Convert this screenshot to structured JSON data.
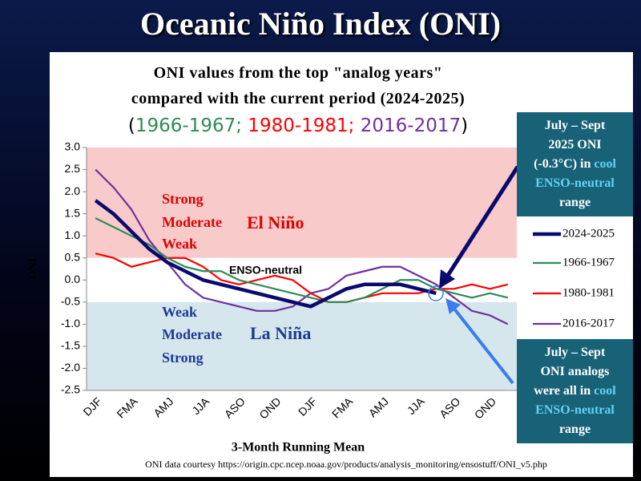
{
  "slide_title": "Oceanic Niño Index (ONI)",
  "chart_data": {
    "type": "line",
    "title": [
      "ONI values from the top \"analog years\"",
      "compared with the current period (2024-2025)"
    ],
    "subtitle": [
      {
        "text": "(",
        "color": "#000000"
      },
      {
        "text": "1966-1967;",
        "color": "#2e8b57"
      },
      {
        "text": " 1980-1981;",
        "color": "#ff0000"
      },
      {
        "text": " 2016-2017",
        "color": "#7030a0"
      },
      {
        "text": ")",
        "color": "#000000"
      }
    ],
    "ylabel": "ONI",
    "xlabel": "3-Month Running Mean",
    "categories": [
      "DJF",
      null,
      "FMA",
      null,
      "AMJ",
      null,
      "JJA",
      null,
      "ASO",
      null,
      "OND",
      null,
      "DJF",
      null,
      "FMA",
      null,
      "AMJ",
      null,
      "JJA",
      null,
      "ASO",
      null,
      "OND",
      null
    ],
    "series": [
      {
        "name": "2024-2025",
        "color": "#0a0a6e",
        "values": [
          1.8,
          1.5,
          1.1,
          0.7,
          0.4,
          0.2,
          0.0,
          -0.1,
          -0.2,
          -0.3,
          -0.4,
          -0.5,
          -0.6,
          -0.4,
          -0.2,
          -0.1,
          -0.1,
          -0.1,
          -0.2,
          -0.3,
          null,
          null,
          null,
          null
        ]
      },
      {
        "name": "1966-1967",
        "color": "#2e8b57",
        "values": [
          1.4,
          1.2,
          1.0,
          0.8,
          0.5,
          0.3,
          0.2,
          0.2,
          0.0,
          -0.1,
          -0.2,
          -0.3,
          -0.4,
          -0.5,
          -0.5,
          -0.4,
          -0.2,
          0.0,
          0.0,
          -0.2,
          -0.3,
          -0.4,
          -0.3,
          -0.4
        ]
      },
      {
        "name": "1980-1981",
        "color": "#ff0000",
        "values": [
          0.6,
          0.5,
          0.3,
          0.4,
          0.5,
          0.5,
          0.3,
          0.0,
          -0.1,
          0.0,
          0.1,
          0.0,
          -0.3,
          -0.5,
          -0.5,
          -0.4,
          -0.3,
          -0.3,
          -0.3,
          -0.2,
          -0.2,
          -0.1,
          -0.2,
          -0.1
        ]
      },
      {
        "name": "2016-2017",
        "color": "#7030a0",
        "values": [
          2.5,
          2.1,
          1.6,
          0.9,
          0.4,
          -0.1,
          -0.4,
          -0.5,
          -0.6,
          -0.7,
          -0.7,
          -0.6,
          -0.3,
          -0.2,
          0.1,
          0.2,
          0.3,
          0.3,
          0.1,
          -0.1,
          -0.4,
          -0.7,
          -0.8,
          -1.0
        ]
      }
    ],
    "ylim": [
      -2.5,
      3.0
    ],
    "yticks": [
      {
        "value": 3,
        "label": "3.0"
      },
      {
        "value": 2.5,
        "label": "2.5"
      },
      {
        "value": 2,
        "label": "2.0"
      },
      {
        "value": 1.5,
        "label": "1.5"
      },
      {
        "value": 1,
        "label": "1.0"
      },
      {
        "value": 0.5,
        "label": "0.5"
      },
      {
        "value": 0,
        "label": "0.0"
      },
      {
        "value": -0.5,
        "label": "-0.5"
      },
      {
        "value": -1,
        "label": "-1.0"
      },
      {
        "value": -1.5,
        "label": "-1.5"
      },
      {
        "value": -2,
        "label": "-2.0"
      },
      {
        "value": -2.5,
        "label": "-2.5"
      }
    ],
    "bands": [
      {
        "from": 0.5,
        "to": 3,
        "color": "#f9caca"
      },
      {
        "from": -0.5,
        "to": 0.5,
        "color": "#ffffff"
      },
      {
        "from": -2.5,
        "to": -0.5,
        "color": "#d5e7ed"
      }
    ],
    "el_nino": {
      "label": "El Niño",
      "levels": [
        "Strong",
        "Moderate",
        "Weak"
      ]
    },
    "la_nina": {
      "label": "La Niña",
      "levels": [
        "Weak",
        "Moderate",
        "Strong"
      ]
    },
    "neutral_label": "ENSO-neutral"
  },
  "callouts": [
    {
      "lines": [
        [
          {
            "text": "July – Sept",
            "color": "#ffffff"
          }
        ],
        [
          {
            "text": "2025 ONI",
            "color": "#ffffff"
          }
        ],
        [
          {
            "text": "(-0.3°C) in ",
            "color": "#ffffff"
          },
          {
            "text": "cool",
            "color": "#5fd3f5"
          }
        ],
        [
          {
            "text": "ENSO-neutral",
            "color": "#5fd3f5"
          }
        ],
        [
          {
            "text": "range",
            "color": "#ffffff"
          }
        ]
      ]
    },
    {
      "lines": [
        [
          {
            "text": "July – Sept",
            "color": "#ffffff"
          }
        ],
        [
          {
            "text": "ONI analogs",
            "color": "#ffffff"
          }
        ],
        [
          {
            "text": "were all in ",
            "color": "#ffffff"
          },
          {
            "text": "cool",
            "color": "#5fd3f5"
          }
        ],
        [
          {
            "text": "ENSO-neutral",
            "color": "#5fd3f5"
          }
        ],
        [
          {
            "text": "range",
            "color": "#ffffff"
          }
        ]
      ]
    }
  ],
  "source": "ONI data courtesy https://origin.cpc.ncep.noaa.gov/products/analysis_monitoring/ensostuff/ONI_v5.php"
}
